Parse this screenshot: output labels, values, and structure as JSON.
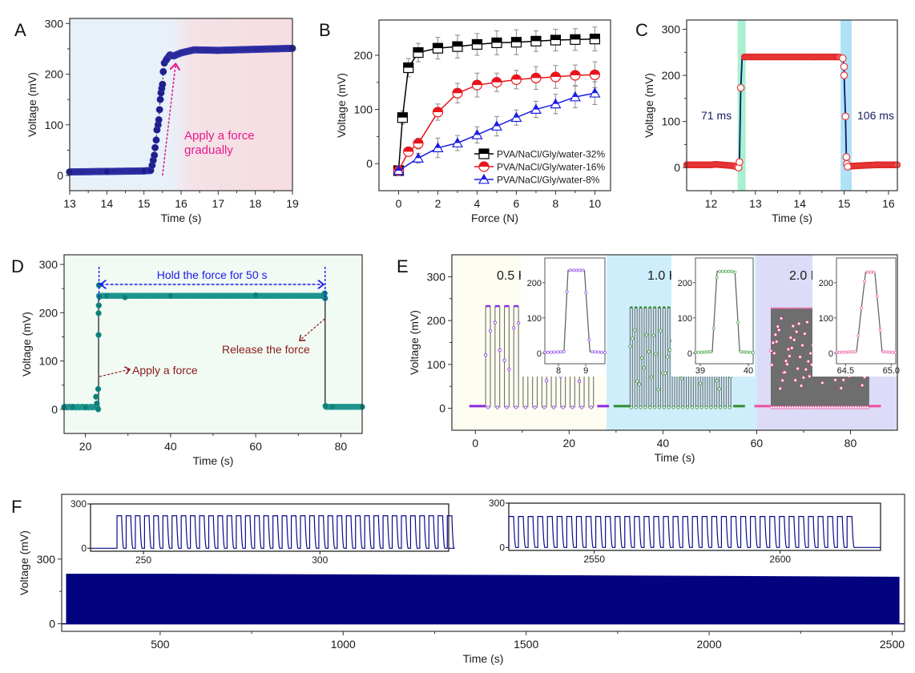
{
  "figure": {
    "panels": [
      "A",
      "B",
      "C",
      "D",
      "E",
      "F"
    ]
  },
  "chart_data": [
    {
      "id": "A",
      "panel_label": "A",
      "type": "scatter",
      "title": "",
      "xlabel": "Time (s)",
      "ylabel": "Voltage (mV)",
      "xlim": [
        13,
        19
      ],
      "ylim": [
        -30,
        310
      ],
      "xticks": [
        13,
        14,
        15,
        16,
        17,
        18,
        19
      ],
      "yticks": [
        0,
        100,
        200,
        300
      ],
      "background": {
        "left_color": "#E8F1F8",
        "right_color": "#F6DDE1",
        "transition_x": 15.5
      },
      "marker_color": "#1E1E8C",
      "series": [
        {
          "name": "voltage",
          "x": [
            13.0,
            14.0,
            15.0,
            15.18,
            15.22,
            15.25,
            15.28,
            15.3,
            15.33,
            15.35,
            15.38,
            15.4,
            15.42,
            15.44,
            15.46,
            15.48,
            15.5,
            15.52,
            15.55,
            15.6,
            15.7,
            15.8,
            16.0,
            16.35,
            17.0,
            18.0,
            19.0
          ],
          "y": [
            7,
            8,
            9,
            10,
            20,
            30,
            40,
            55,
            70,
            90,
            100,
            110,
            130,
            150,
            163,
            172,
            180,
            205,
            222,
            228,
            238,
            236,
            242,
            248,
            247,
            249,
            251
          ]
        }
      ],
      "annotations": [
        {
          "text": "Apply a force",
          "line2": "gradually",
          "color": "#E8198B",
          "arrow_from": [
            15.5,
            0
          ],
          "arrow_to": [
            15.85,
            218
          ]
        }
      ]
    },
    {
      "id": "B",
      "panel_label": "B",
      "type": "line",
      "title": "",
      "xlabel": "Force (N)",
      "ylabel": "Voltage (mV)",
      "xlim": [
        -1,
        10.8
      ],
      "ylim": [
        -50,
        265
      ],
      "xticks": [
        0,
        2,
        4,
        6,
        8,
        10
      ],
      "yticks": [
        0,
        100,
        200
      ],
      "legend_position": "bottom-right",
      "series": [
        {
          "name": "PVA/NaCl/Gly/water-32%",
          "color": "#000000",
          "marker": "square",
          "x": [
            0,
            0.2,
            0.5,
            1,
            2,
            3,
            4,
            5,
            6,
            7,
            8,
            9,
            10
          ],
          "y": [
            -13,
            85,
            177,
            205,
            213,
            216,
            220,
            223,
            224,
            226,
            228,
            229,
            230
          ],
          "err": [
            5,
            12,
            17,
            17,
            20,
            21,
            20,
            22,
            23,
            19,
            20,
            20,
            22
          ]
        },
        {
          "name": "PVA/NaCl/Gly/water-16%",
          "color": "#E8141B",
          "marker": "circle",
          "x": [
            0,
            0.5,
            1,
            2,
            3,
            4,
            5,
            6,
            7,
            8,
            9,
            10
          ],
          "y": [
            -13,
            22,
            37,
            95,
            130,
            145,
            150,
            155,
            158,
            160,
            163,
            164
          ],
          "err": [
            5,
            6,
            10,
            15,
            18,
            22,
            17,
            17,
            21,
            21,
            19,
            24
          ]
        },
        {
          "name": "PVA/NaCl/Gly/water-8%",
          "color": "#1C1CE6",
          "marker": "triangle",
          "x": [
            0,
            1,
            2,
            3,
            4,
            5,
            6,
            7,
            8,
            9,
            10
          ],
          "y": [
            -13,
            10,
            29,
            38,
            53,
            69,
            85,
            100,
            110,
            123,
            130
          ],
          "err": [
            5,
            9,
            18,
            14,
            15,
            18,
            14,
            15,
            18,
            20,
            21
          ]
        }
      ]
    },
    {
      "id": "C",
      "panel_label": "C",
      "type": "line",
      "title": "",
      "xlabel": "Time (s)",
      "ylabel": "Voltage (mV)",
      "xlim": [
        11.45,
        16.2
      ],
      "ylim": [
        -50,
        320
      ],
      "xticks": [
        12,
        13,
        14,
        15,
        16
      ],
      "yticks": [
        0,
        100,
        200,
        300
      ],
      "bands": [
        {
          "x0": 12.6,
          "x1": 12.78,
          "color": "#A9F0D1"
        },
        {
          "x0": 14.92,
          "x1": 15.17,
          "color": "#B0E2F7"
        }
      ],
      "line_color": "#0A1A6E",
      "marker_color": "#F0393A",
      "series": [
        {
          "name": "voltage",
          "x": [
            11.45,
            12.0,
            12.1,
            12.5,
            12.62,
            12.64,
            12.67,
            12.7,
            12.75,
            13.0,
            14.0,
            14.9,
            14.97,
            15.0,
            15.0,
            15.03,
            15.05,
            15.06,
            15.08,
            15.12,
            15.5,
            15.75,
            16.2
          ],
          "y": [
            6,
            6,
            7,
            4,
            0,
            12,
            173,
            237,
            240,
            240,
            240,
            240,
            237,
            219,
            200,
            111,
            23,
            8,
            2,
            3,
            5,
            6,
            6
          ]
        }
      ],
      "annotations": [
        {
          "text": "71 ms",
          "color": "#1A1A5E"
        },
        {
          "text": "106 ms",
          "color": "#1A1A5E"
        }
      ]
    },
    {
      "id": "D",
      "panel_label": "D",
      "type": "scatter",
      "title": "",
      "xlabel": "Time (s)",
      "ylabel": "Voltage (mV)",
      "xlim": [
        15,
        85
      ],
      "ylim": [
        -50,
        320
      ],
      "xticks": [
        20,
        40,
        60,
        80
      ],
      "yticks": [
        0,
        100,
        200,
        300
      ],
      "background": "#F1FBF3",
      "marker_color": "#0E7F7A",
      "series": [
        {
          "name": "voltage",
          "x": [
            15,
            17,
            20,
            22.5,
            22.7,
            23,
            23,
            23.1,
            23.1,
            23.15,
            23.2,
            23.3,
            25,
            29.3,
            40,
            60,
            76,
            76.2,
            76.3,
            76.4,
            78,
            85
          ],
          "y": [
            4,
            5,
            4,
            26,
            12,
            0,
            42,
            154,
            199,
            215,
            257,
            233,
            235,
            232,
            235,
            236,
            237,
            240,
            230,
            7,
            5,
            5
          ]
        }
      ],
      "annotations": [
        {
          "id": "hold",
          "text": "Hold the force for 50 s",
          "color": "#1A1AEE"
        },
        {
          "id": "apply",
          "text": "Apply a force",
          "color": "#8B1A1A"
        },
        {
          "id": "release",
          "text": "Release the force",
          "color": "#8B1A1A"
        }
      ]
    },
    {
      "id": "E",
      "panel_label": "E",
      "type": "line",
      "title": "",
      "xlabel": "Time (s)",
      "ylabel": "Voltage (mV)",
      "xlim": [
        -5,
        90
      ],
      "ylim": [
        -50,
        350
      ],
      "xticks": [
        0,
        20,
        40,
        60,
        80
      ],
      "yticks": [
        0,
        100,
        200,
        300
      ],
      "regions": [
        {
          "label": "0.5 Hz",
          "x0": -5,
          "x1": 28,
          "color": "#FDFDF1",
          "freq": 0.5,
          "on": 2.2,
          "off": 26,
          "high": 233,
          "marker_color": "#8A2BE2"
        },
        {
          "label": "1.0 Hz",
          "x0": 28,
          "x1": 60,
          "color": "#CFEEFB",
          "freq": 1.0,
          "on": 33,
          "off": 55,
          "high": 230,
          "marker_color": "#2E8B2E"
        },
        {
          "label": "2.0 Hz",
          "x0": 60,
          "x1": 90,
          "color": "#DCDCF9",
          "freq": 2.0,
          "on": 63,
          "off": 84,
          "high": 228,
          "marker_color": "#F0509A"
        }
      ],
      "line_color": "#6E6E6E",
      "insets": [
        {
          "xlim": [
            7.5,
            9.7
          ],
          "xticks": [
            "8",
            "9"
          ],
          "yticks": [
            0,
            100,
            200
          ],
          "rise": [
            8.2,
            8.35
          ],
          "fall": [
            8.95,
            9.15
          ],
          "high": 235,
          "marker_color": "#A060F0"
        },
        {
          "xlim": [
            38.9,
            40.1
          ],
          "xticks": [
            "39",
            "40"
          ],
          "yticks": [
            0,
            100,
            200
          ],
          "rise": [
            39.25,
            39.35
          ],
          "fall": [
            39.72,
            39.82
          ],
          "high": 232,
          "marker_color": "#5AAF5A"
        },
        {
          "xlim": [
            64.4,
            65.05
          ],
          "xticks": [
            "64.5",
            "65.0"
          ],
          "yticks": [
            0,
            100,
            200
          ],
          "rise": [
            64.62,
            64.72
          ],
          "fall": [
            64.82,
            64.9
          ],
          "high": 230,
          "marker_color": "#F070B0"
        }
      ]
    },
    {
      "id": "F",
      "panel_label": "F",
      "type": "area",
      "title": "",
      "xlabel": "Time (s)",
      "ylabel": "Voltage (mV)",
      "xlim": [
        231,
        2534
      ],
      "ylim": [
        -35,
        600
      ],
      "xticks": [
        500,
        1000,
        1500,
        2000,
        2500
      ],
      "yticks": [
        0,
        300
      ],
      "fill_color": "#030380",
      "series": [
        {
          "name": "envelope",
          "x": [
            243,
            500,
            1000,
            1500,
            2000,
            2520
          ],
          "upper": [
            232,
            232,
            229,
            226,
            222,
            218
          ],
          "lower": [
            -3,
            -3,
            -3,
            -3,
            -3,
            -3
          ]
        }
      ],
      "insets": [
        {
          "xlim": [
            235,
            336.5
          ],
          "xticks": [
            "250",
            "300"
          ],
          "ytick_labels": [
            "0",
            "300"
          ],
          "pulse_start": 242.5,
          "pulse_end": 336.5,
          "period": 2.6,
          "high": 220
        },
        {
          "xlim": [
            2527,
            2627
          ],
          "xticks": [
            "2550",
            "2600"
          ],
          "ytick_labels": [
            "0",
            "300"
          ],
          "pulse_start": 2527,
          "pulse_end": 2620.5,
          "period": 2.6,
          "high": 210
        }
      ]
    }
  ]
}
